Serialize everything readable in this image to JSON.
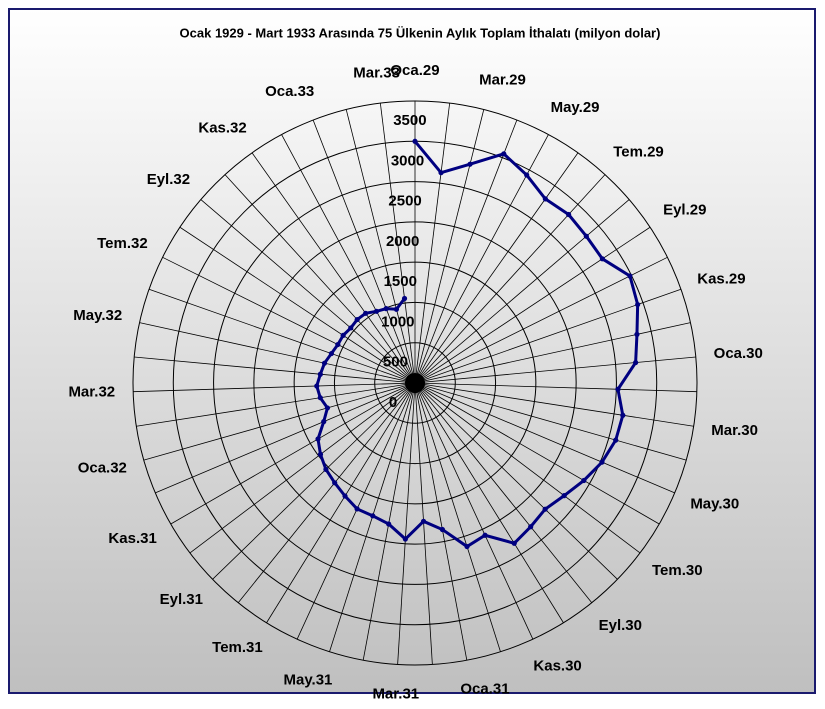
{
  "chart_data": {
    "type": "radar",
    "title": "Ocak 1929 - Mart 1933 Arasında 75 Ülkenin Aylık Toplam İthalatı (milyon dolar)",
    "categories": [
      "Oca.29",
      null,
      "Mar.29",
      null,
      "May.29",
      null,
      "Tem.29",
      null,
      "Eyl.29",
      null,
      "Kas.29",
      null,
      "Oca.30",
      null,
      "Mar.30",
      null,
      "May.30",
      null,
      "Tem.30",
      null,
      "Eyl.30",
      null,
      "Kas.30",
      null,
      "Oca.31",
      null,
      "Mar.31",
      null,
      "May.31",
      null,
      "Tem.31",
      null,
      "Eyl.31",
      null,
      "Kas.31",
      null,
      "Oca.32",
      null,
      "Mar.32",
      null,
      "May.32",
      null,
      "Tem.32",
      null,
      "Eyl.32",
      null,
      "Kas.32",
      null,
      "Oca.33",
      null,
      "Mar.33"
    ],
    "values": [
      3000,
      2630,
      2800,
      3050,
      2930,
      2800,
      2830,
      2800,
      2790,
      2980,
      2930,
      2820,
      2750,
      2520,
      2610,
      2590,
      2520,
      2420,
      2320,
      2250,
      2290,
      2340,
      2080,
      2130,
      1850,
      1720,
      1940,
      1780,
      1730,
      1720,
      1650,
      1590,
      1540,
      1470,
      1390,
      1230,
      1130,
      1190,
      1220,
      1180,
      1150,
      1100,
      1070,
      1070,
      1050,
      1065,
      1060,
      1010,
      990,
      944,
      1057
    ],
    "color": "#000080",
    "ylim": [
      0,
      3500
    ],
    "yticks": [
      0,
      500,
      1000,
      1500,
      2000,
      2500,
      3000,
      3500
    ],
    "grid": true
  }
}
